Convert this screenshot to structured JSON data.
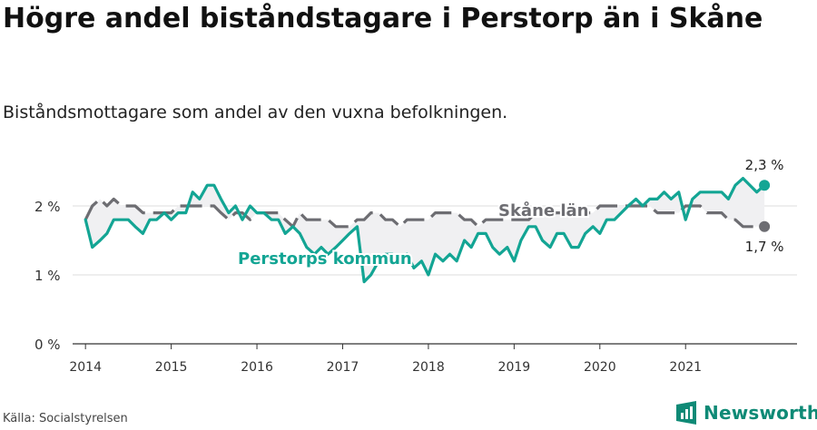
{
  "title": "Högre andel biståndstagare i Perstorp än i Skåne",
  "subtitle": "Biståndsmottagare som andel av den vuxna befolkningen.",
  "source": "Källa: Socialstyrelsen",
  "brand": "Newsworthy",
  "colors": {
    "perstorp": "#13a594",
    "skane": "#6d6d72",
    "fill": "#f0f0f2",
    "grid": "#dddddd",
    "axis": "#333333"
  },
  "chart_data": {
    "type": "line",
    "xlim": [
      2013.85,
      2022.3
    ],
    "ylim": [
      0,
      2.6
    ],
    "y_ticks": [
      0,
      1,
      2
    ],
    "y_tick_labels": [
      "0 %",
      "1 %",
      "2 %"
    ],
    "x_ticks": [
      2014,
      2015,
      2016,
      2017,
      2018,
      2019,
      2020,
      2021
    ],
    "x_tick_labels": [
      "2014",
      "2015",
      "2016",
      "2017",
      "2018",
      "2019",
      "2020",
      "2021"
    ],
    "series": [
      {
        "name": "Skåne län",
        "end_label": "1,7 %",
        "values": [
          [
            2014.0,
            1.8
          ],
          [
            2014.08,
            2.0
          ],
          [
            2014.17,
            2.1
          ],
          [
            2014.25,
            2.0
          ],
          [
            2014.33,
            2.1
          ],
          [
            2014.42,
            2.0
          ],
          [
            2014.5,
            2.0
          ],
          [
            2014.58,
            2.0
          ],
          [
            2014.67,
            1.9
          ],
          [
            2014.75,
            1.9
          ],
          [
            2014.83,
            1.9
          ],
          [
            2014.92,
            1.9
          ],
          [
            2015.0,
            1.9
          ],
          [
            2015.08,
            2.0
          ],
          [
            2015.17,
            2.0
          ],
          [
            2015.25,
            2.0
          ],
          [
            2015.33,
            2.0
          ],
          [
            2015.42,
            2.0
          ],
          [
            2015.5,
            2.0
          ],
          [
            2015.58,
            1.9
          ],
          [
            2015.67,
            1.8
          ],
          [
            2015.75,
            1.9
          ],
          [
            2015.83,
            1.9
          ],
          [
            2015.92,
            1.8
          ],
          [
            2016.0,
            1.9
          ],
          [
            2016.08,
            1.9
          ],
          [
            2016.17,
            1.9
          ],
          [
            2016.25,
            1.9
          ],
          [
            2016.33,
            1.8
          ],
          [
            2016.42,
            1.7
          ],
          [
            2016.5,
            1.9
          ],
          [
            2016.58,
            1.8
          ],
          [
            2016.67,
            1.8
          ],
          [
            2016.75,
            1.8
          ],
          [
            2016.83,
            1.8
          ],
          [
            2016.92,
            1.7
          ],
          [
            2017.0,
            1.7
          ],
          [
            2017.08,
            1.7
          ],
          [
            2017.17,
            1.8
          ],
          [
            2017.25,
            1.8
          ],
          [
            2017.33,
            1.9
          ],
          [
            2017.42,
            1.9
          ],
          [
            2017.5,
            1.8
          ],
          [
            2017.58,
            1.8
          ],
          [
            2017.67,
            1.7
          ],
          [
            2017.75,
            1.8
          ],
          [
            2017.83,
            1.8
          ],
          [
            2017.92,
            1.8
          ],
          [
            2018.0,
            1.8
          ],
          [
            2018.08,
            1.9
          ],
          [
            2018.17,
            1.9
          ],
          [
            2018.25,
            1.9
          ],
          [
            2018.33,
            1.9
          ],
          [
            2018.42,
            1.8
          ],
          [
            2018.5,
            1.8
          ],
          [
            2018.58,
            1.7
          ],
          [
            2018.67,
            1.8
          ],
          [
            2018.75,
            1.8
          ],
          [
            2018.83,
            1.8
          ],
          [
            2018.92,
            1.8
          ],
          [
            2019.0,
            1.8
          ],
          [
            2019.08,
            1.8
          ],
          [
            2019.17,
            1.8
          ],
          [
            2019.25,
            1.9
          ],
          [
            2019.33,
            1.9
          ],
          [
            2019.42,
            1.9
          ],
          [
            2019.5,
            1.9
          ],
          [
            2019.58,
            1.9
          ],
          [
            2019.67,
            1.9
          ],
          [
            2019.75,
            1.9
          ],
          [
            2019.83,
            1.9
          ],
          [
            2019.92,
            1.9
          ],
          [
            2020.0,
            2.0
          ],
          [
            2020.08,
            2.0
          ],
          [
            2020.17,
            2.0
          ],
          [
            2020.25,
            2.0
          ],
          [
            2020.33,
            2.0
          ],
          [
            2020.42,
            2.0
          ],
          [
            2020.5,
            2.0
          ],
          [
            2020.58,
            2.0
          ],
          [
            2020.67,
            1.9
          ],
          [
            2020.75,
            1.9
          ],
          [
            2020.83,
            1.9
          ],
          [
            2020.92,
            1.9
          ],
          [
            2021.0,
            2.0
          ],
          [
            2021.08,
            2.0
          ],
          [
            2021.17,
            2.0
          ],
          [
            2021.25,
            1.9
          ],
          [
            2021.33,
            1.9
          ],
          [
            2021.42,
            1.9
          ],
          [
            2021.5,
            1.8
          ],
          [
            2021.58,
            1.8
          ],
          [
            2021.67,
            1.7
          ],
          [
            2021.75,
            1.7
          ],
          [
            2021.83,
            1.7
          ],
          [
            2021.92,
            1.7
          ]
        ]
      },
      {
        "name": "Perstorps kommun",
        "end_label": "2,3 %",
        "values": [
          [
            2014.0,
            1.8
          ],
          [
            2014.08,
            1.4
          ],
          [
            2014.17,
            1.5
          ],
          [
            2014.25,
            1.6
          ],
          [
            2014.33,
            1.8
          ],
          [
            2014.42,
            1.8
          ],
          [
            2014.5,
            1.8
          ],
          [
            2014.58,
            1.7
          ],
          [
            2014.67,
            1.6
          ],
          [
            2014.75,
            1.8
          ],
          [
            2014.83,
            1.8
          ],
          [
            2014.92,
            1.9
          ],
          [
            2015.0,
            1.8
          ],
          [
            2015.08,
            1.9
          ],
          [
            2015.17,
            1.9
          ],
          [
            2015.25,
            2.2
          ],
          [
            2015.33,
            2.1
          ],
          [
            2015.42,
            2.3
          ],
          [
            2015.5,
            2.3
          ],
          [
            2015.58,
            2.1
          ],
          [
            2015.67,
            1.9
          ],
          [
            2015.75,
            2.0
          ],
          [
            2015.83,
            1.8
          ],
          [
            2015.92,
            2.0
          ],
          [
            2016.0,
            1.9
          ],
          [
            2016.08,
            1.9
          ],
          [
            2016.17,
            1.8
          ],
          [
            2016.25,
            1.8
          ],
          [
            2016.33,
            1.6
          ],
          [
            2016.42,
            1.7
          ],
          [
            2016.5,
            1.6
          ],
          [
            2016.58,
            1.4
          ],
          [
            2016.67,
            1.3
          ],
          [
            2016.75,
            1.4
          ],
          [
            2016.83,
            1.3
          ],
          [
            2016.92,
            1.4
          ],
          [
            2017.0,
            1.5
          ],
          [
            2017.08,
            1.6
          ],
          [
            2017.17,
            1.7
          ],
          [
            2017.25,
            0.9
          ],
          [
            2017.33,
            1.0
          ],
          [
            2017.42,
            1.2
          ],
          [
            2017.5,
            1.3
          ],
          [
            2017.58,
            1.3
          ],
          [
            2017.67,
            1.2
          ],
          [
            2017.75,
            1.3
          ],
          [
            2017.83,
            1.1
          ],
          [
            2017.92,
            1.2
          ],
          [
            2018.0,
            1.0
          ],
          [
            2018.08,
            1.3
          ],
          [
            2018.17,
            1.2
          ],
          [
            2018.25,
            1.3
          ],
          [
            2018.33,
            1.2
          ],
          [
            2018.42,
            1.5
          ],
          [
            2018.5,
            1.4
          ],
          [
            2018.58,
            1.6
          ],
          [
            2018.67,
            1.6
          ],
          [
            2018.75,
            1.4
          ],
          [
            2018.83,
            1.3
          ],
          [
            2018.92,
            1.4
          ],
          [
            2019.0,
            1.2
          ],
          [
            2019.08,
            1.5
          ],
          [
            2019.17,
            1.7
          ],
          [
            2019.25,
            1.7
          ],
          [
            2019.33,
            1.5
          ],
          [
            2019.42,
            1.4
          ],
          [
            2019.5,
            1.6
          ],
          [
            2019.58,
            1.6
          ],
          [
            2019.67,
            1.4
          ],
          [
            2019.75,
            1.4
          ],
          [
            2019.83,
            1.6
          ],
          [
            2019.92,
            1.7
          ],
          [
            2020.0,
            1.6
          ],
          [
            2020.08,
            1.8
          ],
          [
            2020.17,
            1.8
          ],
          [
            2020.25,
            1.9
          ],
          [
            2020.33,
            2.0
          ],
          [
            2020.42,
            2.1
          ],
          [
            2020.5,
            2.0
          ],
          [
            2020.58,
            2.1
          ],
          [
            2020.67,
            2.1
          ],
          [
            2020.75,
            2.2
          ],
          [
            2020.83,
            2.1
          ],
          [
            2020.92,
            2.2
          ],
          [
            2021.0,
            1.8
          ],
          [
            2021.08,
            2.1
          ],
          [
            2021.17,
            2.2
          ],
          [
            2021.25,
            2.2
          ],
          [
            2021.33,
            2.2
          ],
          [
            2021.42,
            2.2
          ],
          [
            2021.5,
            2.1
          ],
          [
            2021.58,
            2.3
          ],
          [
            2021.67,
            2.4
          ],
          [
            2021.75,
            2.3
          ],
          [
            2021.83,
            2.2
          ],
          [
            2021.92,
            2.3
          ]
        ]
      }
    ],
    "annotations": [
      "Skåne län",
      "Perstorps kommun"
    ],
    "grid": true
  }
}
